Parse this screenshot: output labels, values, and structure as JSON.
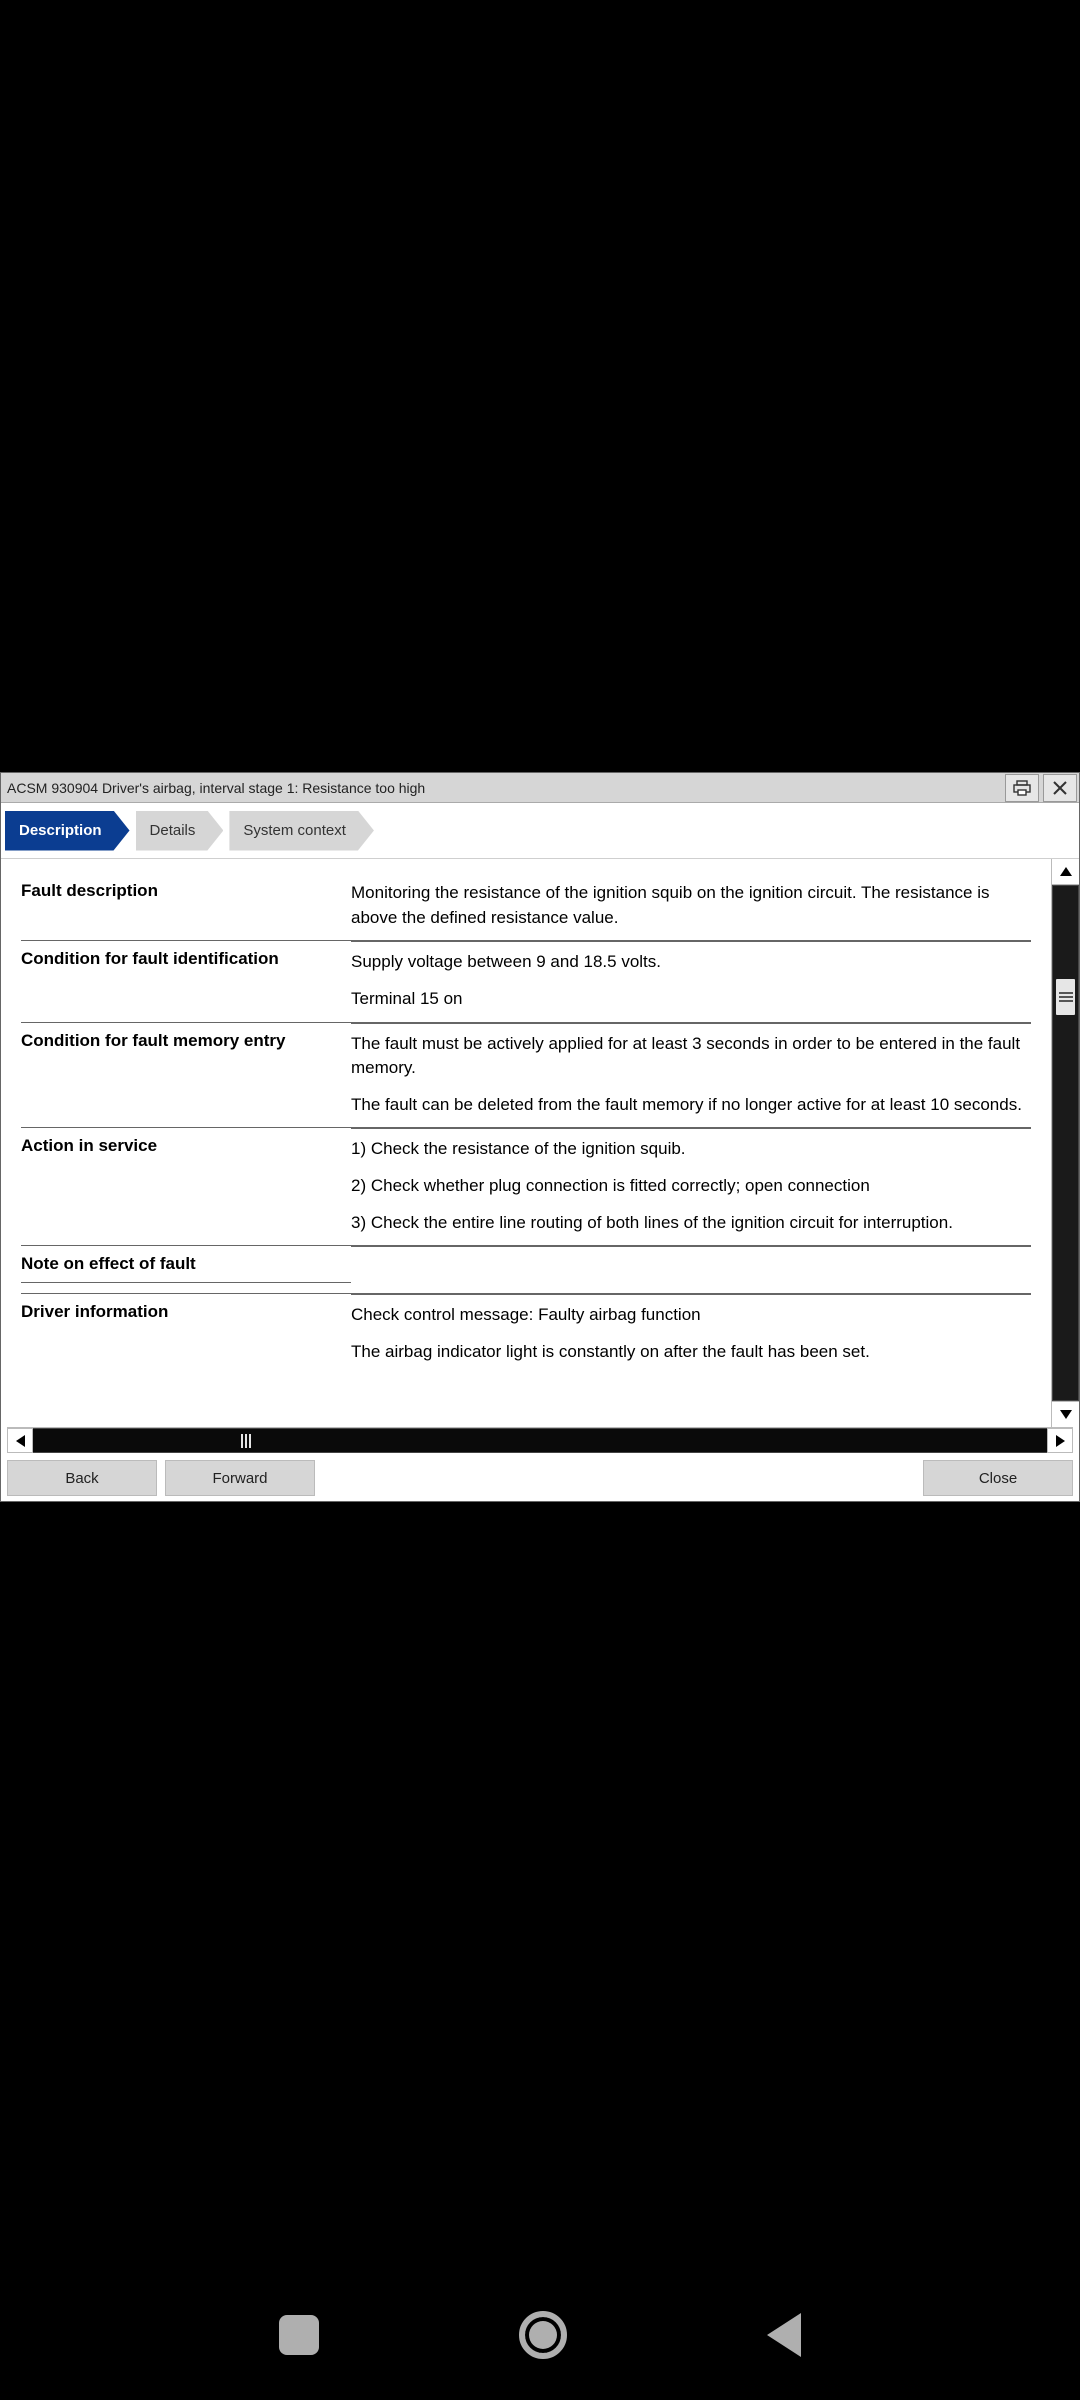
{
  "window": {
    "title": "ACSM 930904 Driver's airbag, interval stage 1: Resistance too high"
  },
  "tabs": [
    {
      "label": "Description",
      "active": true
    },
    {
      "label": "Details",
      "active": false
    },
    {
      "label": "System context",
      "active": false
    }
  ],
  "sections": [
    {
      "label": "Fault description",
      "paragraphs": [
        "Monitoring the resistance of the ignition squib on the ignition circuit. The resistance is above the defined resistance value."
      ]
    },
    {
      "label": "Condition for fault identification",
      "paragraphs": [
        "Supply voltage between 9 and 18.5 volts.",
        "Terminal 15 on"
      ]
    },
    {
      "label": "Condition for fault memory entry",
      "paragraphs": [
        "The fault must be actively applied for at least 3 seconds in order to be entered in the fault memory.",
        "The fault can be deleted from the fault memory if no longer active for at least 10 seconds."
      ]
    },
    {
      "label": "Action in service",
      "paragraphs": [
        "1) Check the resistance of the ignition squib.",
        "2) Check whether plug connection is fitted correctly; open connection",
        "3) Check the entire line routing of both lines of the ignition circuit for interruption."
      ]
    },
    {
      "label": "Note on effect of fault",
      "paragraphs": []
    },
    {
      "label": "Driver information",
      "paragraphs": [
        "Check control message: Faulty airbag function",
        "The airbag indicator light is constantly on after the fault has been set."
      ]
    }
  ],
  "footer": {
    "back": "Back",
    "forward": "Forward",
    "close": "Close"
  },
  "colors": {
    "active_tab_bg": "#0b3d91",
    "inactive_tab_bg": "#d6d6d6",
    "window_bg": "#ffffff",
    "titlebar_bg": "#d6d6d6",
    "screen_bg": "#000000"
  }
}
